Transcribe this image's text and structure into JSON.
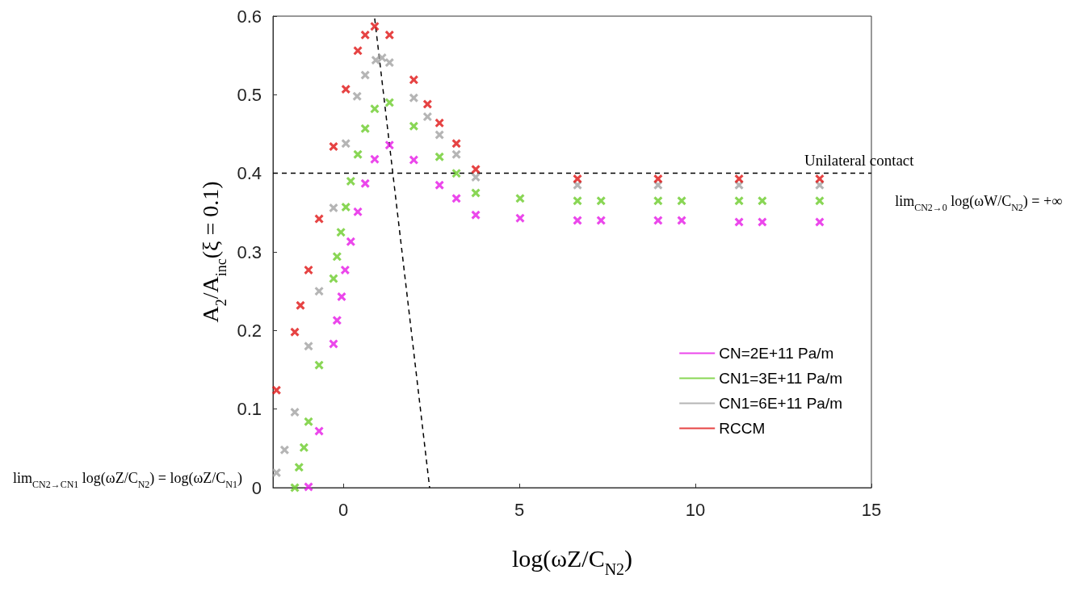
{
  "chart_data": {
    "type": "scatter",
    "xlabel": "log(ωZ/C$_{N2}$)",
    "ylabel": "A$_{2}$/A$_{inc}$(ξ = 0.1)",
    "xlim": [
      -2,
      15
    ],
    "xticks": [
      0,
      5,
      10,
      15
    ],
    "ylim": [
      0,
      0.6
    ],
    "yticks": [
      0,
      0.1,
      0.2,
      0.3,
      0.4,
      0.5,
      0.6
    ],
    "grid": false,
    "legend": "bottom right",
    "marker": "cross",
    "series": [
      {
        "name": "CN=2E+11 Pa/m",
        "color": "#e619e6",
        "x": [
          -0.99,
          -0.69,
          -0.28,
          -0.18,
          -0.05,
          0.05,
          0.21,
          0.41,
          0.62,
          0.89,
          1.31,
          2.0,
          2.73,
          3.21,
          3.76,
          5.02,
          6.65,
          7.32,
          8.94,
          9.61,
          11.24,
          11.9,
          13.53
        ],
        "values": [
          0.001,
          0.072,
          0.183,
          0.213,
          0.243,
          0.277,
          0.313,
          0.351,
          0.387,
          0.418,
          0.436,
          0.417,
          0.385,
          0.368,
          0.347,
          0.343,
          0.34,
          0.34,
          0.34,
          0.34,
          0.338,
          0.338,
          0.338
        ]
      },
      {
        "name": "CN1=3E+11 Pa/m",
        "color": "#6ccc2a",
        "x": [
          -1.38,
          -1.26,
          -1.12,
          -0.99,
          -0.69,
          -0.28,
          -0.18,
          -0.07,
          0.07,
          0.21,
          0.41,
          0.62,
          0.89,
          1.31,
          2.0,
          2.73,
          3.21,
          3.76,
          5.02,
          6.65,
          7.32,
          8.94,
          9.61,
          11.24,
          11.9,
          13.53
        ],
        "values": [
          0.0,
          0.026,
          0.051,
          0.084,
          0.156,
          0.266,
          0.294,
          0.325,
          0.357,
          0.39,
          0.424,
          0.457,
          0.482,
          0.49,
          0.46,
          0.421,
          0.4,
          0.375,
          0.368,
          0.365,
          0.365,
          0.365,
          0.365,
          0.365,
          0.365,
          0.365
        ]
      },
      {
        "name": "CN1=6E+11 Pa/m",
        "color": "#a3a3a3",
        "x": [
          -1.9,
          -1.67,
          -1.38,
          -0.99,
          -0.69,
          -0.28,
          0.07,
          0.39,
          0.62,
          0.92,
          1.1,
          1.31,
          2.0,
          2.39,
          2.73,
          3.21,
          3.76,
          6.65,
          8.94,
          11.24,
          13.53
        ],
        "values": [
          0.019,
          0.048,
          0.096,
          0.18,
          0.25,
          0.356,
          0.438,
          0.498,
          0.525,
          0.544,
          0.547,
          0.541,
          0.496,
          0.472,
          0.449,
          0.424,
          0.395,
          0.385,
          0.385,
          0.385,
          0.385
        ]
      },
      {
        "name": "RCCM",
        "color": "#e01414",
        "x": [
          -1.9,
          -1.38,
          -1.22,
          -0.99,
          -0.69,
          -0.28,
          0.07,
          0.41,
          0.62,
          0.89,
          1.31,
          2.0,
          2.39,
          2.73,
          3.21,
          3.76,
          6.65,
          8.94,
          11.24,
          13.53
        ],
        "values": [
          0.124,
          0.198,
          0.232,
          0.277,
          0.342,
          0.434,
          0.507,
          0.556,
          0.576,
          0.587,
          0.576,
          0.519,
          0.488,
          0.464,
          0.438,
          0.405,
          0.393,
          0.393,
          0.393,
          0.393
        ]
      },
      {
        "type": "line",
        "color": "#000000",
        "line_style": "dashed",
        "marker": "none",
        "x": [
          0.89,
          2.45
        ],
        "values": [
          0.597,
          0
        ]
      }
    ],
    "ref_lines": [
      {
        "axis": "y",
        "value": 0.4,
        "label": "Unilateral contact",
        "color": "#000000",
        "line_style": "dashed"
      }
    ],
    "annotations": [
      "lim$_{CN2→0}$ log(ωW/C$_{N2}$) = +∞",
      "lim$_{CN2→CN1}$ log(ωZ/C$_{N2}$) = log(ωZ/C$_{N1}$)"
    ]
  }
}
